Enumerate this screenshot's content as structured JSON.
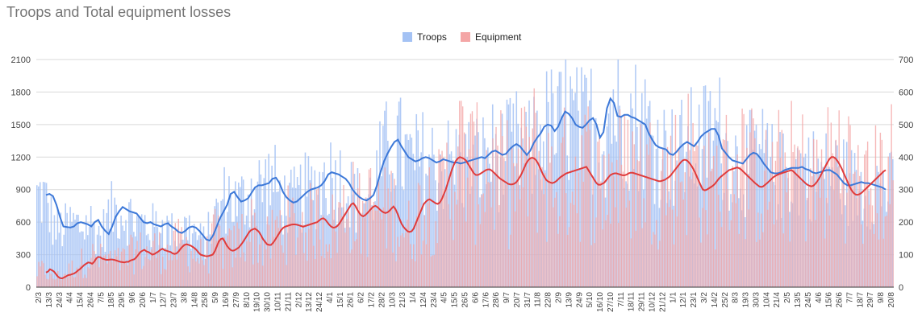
{
  "chart_data": {
    "type": "bar+line",
    "title": "Troops and Total equipment losses",
    "series_meta": [
      {
        "name": "Troops",
        "axis": "left",
        "bar_color": "#a4c2f4",
        "line_color": "#3c78d8"
      },
      {
        "name": "Equipment",
        "axis": "right",
        "bar_color": "#f4a6a6",
        "line_color": "#e03b3b"
      }
    ],
    "left_axis": {
      "ticks": [
        "0",
        "300",
        "600",
        "900",
        "1200",
        "1500",
        "1800",
        "2100"
      ],
      "range": [
        0,
        2100
      ]
    },
    "right_axis": {
      "ticks": [
        "0",
        "100",
        "200",
        "300",
        "400",
        "500",
        "600",
        "700"
      ],
      "range": [
        0,
        700
      ]
    },
    "x_tick_labels": [
      "2/3",
      "13/3",
      "24/3",
      "4/4",
      "15/4",
      "26/4",
      "7/5",
      "18/5",
      "29/5",
      "9/6",
      "20/6",
      "1/7",
      "12/7",
      "23/7",
      "3/8",
      "14/8",
      "25/8",
      "5/9",
      "16/9",
      "27/9",
      "8/10",
      "19/10",
      "30/10",
      "10/11",
      "21/11",
      "2/12",
      "13/12",
      "24/12",
      "4/1",
      "15/1",
      "26/1",
      "6/2",
      "17/2",
      "28/2",
      "10/3",
      "21/3",
      "1/4",
      "12/4",
      "23/4",
      "4/5",
      "15/5",
      "26/5",
      "6/6",
      "17/6",
      "28/6",
      "9/7",
      "20/7",
      "31/7",
      "11/8",
      "22/8",
      "2/9",
      "13/9",
      "24/9",
      "5/10",
      "16/10",
      "27/10",
      "7/11",
      "18/11",
      "29/11",
      "10/12",
      "21/12",
      "1/1",
      "12/1",
      "23/1",
      "3/2",
      "14/2",
      "25/2",
      "8/3",
      "19/3",
      "30/3",
      "10/4",
      "21/4",
      "2/5",
      "13/5",
      "24/5",
      "4/6",
      "15/6",
      "26/6",
      "7/7",
      "18/7",
      "29/7",
      "9/8",
      "20/8"
    ],
    "troops_trend": [
      850,
      860,
      840,
      760,
      650,
      560,
      555,
      550,
      560,
      590,
      600,
      590,
      580,
      560,
      600,
      620,
      560,
      520,
      490,
      560,
      650,
      700,
      740,
      720,
      700,
      690,
      680,
      640,
      600,
      590,
      600,
      580,
      570,
      560,
      580,
      590,
      560,
      540,
      510,
      500,
      520,
      550,
      560,
      550,
      520,
      480,
      440,
      430,
      480,
      560,
      640,
      700,
      760,
      860,
      880,
      830,
      790,
      800,
      820,
      870,
      920,
      940,
      940,
      950,
      960,
      1000,
      1010,
      960,
      880,
      830,
      800,
      780,
      790,
      820,
      850,
      880,
      900,
      910,
      920,
      940,
      980,
      1040,
      1060,
      1050,
      1040,
      1020,
      1000,
      960,
      900,
      860,
      830,
      810,
      800,
      820,
      850,
      940,
      1060,
      1160,
      1230,
      1290,
      1340,
      1360,
      1300,
      1250,
      1200,
      1180,
      1160,
      1170,
      1190,
      1200,
      1190,
      1170,
      1150,
      1160,
      1180,
      1170,
      1160,
      1150,
      1150,
      1140,
      1150,
      1160,
      1170,
      1180,
      1190,
      1200,
      1190,
      1220,
      1250,
      1260,
      1240,
      1220,
      1230,
      1270,
      1300,
      1320,
      1300,
      1260,
      1220,
      1260,
      1330,
      1380,
      1420,
      1480,
      1500,
      1490,
      1440,
      1480,
      1560,
      1620,
      1600,
      1560,
      1500,
      1480,
      1470,
      1500,
      1540,
      1560,
      1500,
      1380,
      1430,
      1650,
      1740,
      1700,
      1580,
      1570,
      1590,
      1590,
      1570,
      1560,
      1540,
      1520,
      1500,
      1420,
      1360,
      1310,
      1290,
      1280,
      1270,
      1230,
      1220,
      1250,
      1290,
      1320,
      1340,
      1320,
      1300,
      1340,
      1390,
      1420,
      1440,
      1460,
      1460,
      1400,
      1280,
      1240,
      1200,
      1170,
      1160,
      1150,
      1140,
      1180,
      1220,
      1240,
      1230,
      1190,
      1140,
      1100,
      1060,
      1050,
      1050,
      1060,
      1080,
      1090,
      1100,
      1100,
      1100,
      1110,
      1090,
      1080,
      1060,
      1050,
      1060,
      1070,
      1080,
      1080,
      1060,
      1040,
      1000,
      960,
      940,
      940,
      950,
      960,
      970,
      960,
      960,
      950,
      940,
      930,
      920,
      900
    ],
    "equipment_trend": [
      45,
      48,
      55,
      52,
      48,
      40,
      32,
      28,
      27,
      30,
      33,
      37,
      38,
      40,
      42,
      46,
      52,
      56,
      62,
      68,
      72,
      76,
      75,
      72,
      78,
      88,
      93,
      92,
      88,
      86,
      84,
      84,
      85,
      85,
      84,
      82,
      80,
      78,
      77,
      76,
      78,
      78,
      82,
      84,
      86,
      92,
      100,
      108,
      112,
      115,
      110,
      108,
      104,
      100,
      102,
      106,
      110,
      115,
      118,
      114,
      112,
      110,
      108,
      104,
      102,
      104,
      110,
      118,
      125,
      130,
      132,
      130,
      128,
      124,
      120,
      114,
      106,
      100,
      98,
      96,
      95,
      96,
      98,
      100,
      110,
      125,
      140,
      148,
      150,
      140,
      128,
      120,
      114,
      112,
      114,
      118,
      122,
      130,
      138,
      148,
      158,
      168,
      175,
      178,
      180,
      176,
      170,
      160,
      148,
      140,
      132,
      130,
      130,
      136,
      145,
      155,
      165,
      175,
      182,
      186,
      188,
      190,
      192,
      193,
      193,
      192,
      190,
      188,
      186,
      188,
      190,
      192,
      194,
      196,
      198,
      200,
      205,
      210,
      212,
      208,
      200,
      192,
      186,
      183,
      184,
      188,
      195,
      205,
      215,
      225,
      235,
      245,
      255,
      258,
      250,
      238,
      228,
      220,
      218,
      222,
      228,
      235,
      242,
      248,
      250,
      246,
      240,
      234,
      230,
      228,
      230,
      235,
      242,
      248,
      240,
      226,
      210,
      195,
      185,
      178,
      172,
      170,
      172,
      180,
      195,
      210,
      225,
      240,
      255,
      262,
      268,
      270,
      266,
      262,
      258,
      256,
      260,
      270,
      285,
      300,
      320,
      340,
      360,
      376,
      388,
      396,
      400,
      398,
      395,
      390,
      380,
      370,
      360,
      350,
      345,
      345,
      348,
      352,
      356,
      360,
      362,
      362,
      358,
      352,
      346,
      340,
      334,
      330,
      326,
      322,
      318,
      316,
      316,
      318,
      322,
      330,
      340,
      352,
      366,
      380,
      390,
      396,
      398,
      396,
      390,
      380,
      366,
      352,
      340,
      330,
      325,
      322,
      320,
      322,
      326,
      332,
      338,
      342,
      346,
      350,
      352,
      354,
      356,
      358,
      360,
      362,
      364,
      366,
      368,
      370,
      360,
      350,
      340,
      330,
      320,
      315,
      315,
      318,
      322,
      330,
      338,
      345,
      348,
      350,
      350,
      348,
      346,
      344,
      344,
      346,
      350,
      352,
      352,
      350,
      348,
      346,
      344,
      342,
      340,
      338,
      336,
      334,
      332,
      330,
      328,
      326,
      326,
      328,
      330,
      334,
      338,
      344,
      352,
      360,
      368,
      376,
      384,
      390,
      392,
      390,
      384,
      376,
      366,
      354,
      340,
      326,
      312,
      300,
      298,
      300,
      304,
      308,
      312,
      318,
      326,
      334,
      340,
      345,
      350,
      355,
      360,
      362,
      364,
      366,
      368,
      366,
      362,
      356,
      350,
      344,
      338,
      332,
      326,
      320,
      315,
      310,
      308,
      310,
      315,
      320,
      326,
      332,
      338,
      342,
      345,
      348,
      350,
      352,
      354,
      356,
      358,
      360,
      356,
      350,
      344,
      338,
      332,
      326,
      320,
      315,
      312,
      310,
      312,
      318,
      326,
      336,
      348,
      360,
      372,
      384,
      394,
      400,
      400,
      396,
      388,
      378,
      366,
      352,
      338,
      324,
      310,
      298,
      290,
      285,
      284,
      286,
      290,
      296,
      302,
      308,
      314,
      320,
      326,
      332,
      338,
      344,
      350,
      356,
      360
    ]
  }
}
